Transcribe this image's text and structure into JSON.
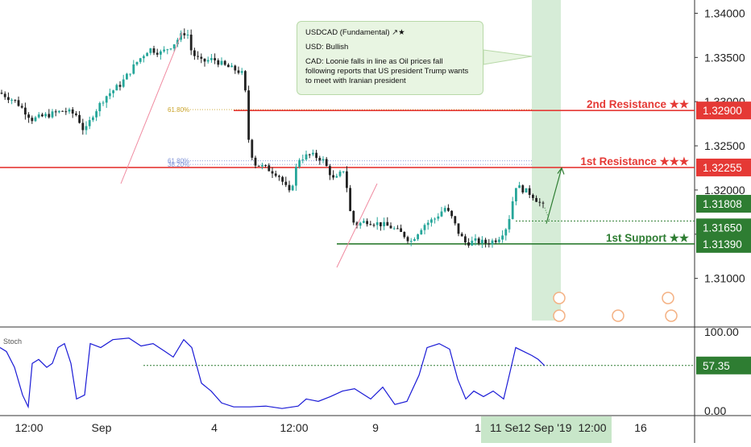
{
  "note": {
    "title": "USDCAD (Fundamental) ↗★",
    "usd": "USD: Bullish",
    "cad": "CAD: Loonie falls in line as Oil prices fall following reports that US president Trump wants to meet with Iranian president"
  },
  "colors": {
    "candle_up": "#26a69a",
    "candle_down": "#222222",
    "resistance": "#e53935",
    "support": "#2e7d32",
    "stoch": "#1a1ad6",
    "projection": "#c8e6c9",
    "fib": "#9e9e9e"
  },
  "chart_data": [
    {
      "type": "candlestick",
      "title": "",
      "y_axis": {
        "ticks": [
          "1.34000",
          "1.33500",
          "1.33000",
          "1.32500",
          "1.32000",
          "1.31500",
          "1.31000"
        ],
        "ylim": [
          1.3045,
          1.3415
        ]
      },
      "x_axis": {
        "ticks": [
          "12:00",
          "Sep",
          "4",
          "12:00",
          "9",
          "1",
          "12:00",
          "16"
        ],
        "highlight_labels": [
          "11 Se",
          "12 Sep '19"
        ]
      },
      "levels": [
        {
          "label": "2nd Resistance ★★",
          "value": "1.32900",
          "price": 1.329
        },
        {
          "label": "1st Resistance ★★★",
          "value": "1.32255",
          "price": 1.32255
        },
        {
          "label": "",
          "value": "1.31808",
          "price": 1.31808
        },
        {
          "label": "",
          "value": "1.31650",
          "price": 1.3165
        },
        {
          "label": "1st Support ★★",
          "value": "1.31390",
          "price": 1.3139
        }
      ],
      "fib_labels": [
        {
          "text": "61.80%",
          "price": 1.3291
        },
        {
          "text": "61.80%",
          "price": 1.3233
        },
        {
          "text": "38.20%",
          "price": 1.3229
        }
      ],
      "price_path": [
        [
          0,
          1.331
        ],
        [
          20,
          1.33
        ],
        [
          40,
          1.328
        ],
        [
          60,
          1.3285
        ],
        [
          80,
          1.329
        ],
        [
          95,
          1.3285
        ],
        [
          105,
          1.3265
        ],
        [
          115,
          1.3285
        ],
        [
          130,
          1.3305
        ],
        [
          150,
          1.332
        ],
        [
          170,
          1.3345
        ],
        [
          185,
          1.336
        ],
        [
          200,
          1.3355
        ],
        [
          215,
          1.3365
        ],
        [
          225,
          1.3375
        ],
        [
          232,
          1.338
        ],
        [
          238,
          1.3355
        ],
        [
          250,
          1.3345
        ],
        [
          265,
          1.3348
        ],
        [
          280,
          1.334
        ],
        [
          295,
          1.3335
        ],
        [
          303,
          1.333
        ],
        [
          308,
          1.326
        ],
        [
          315,
          1.323
        ],
        [
          330,
          1.3225
        ],
        [
          345,
          1.3218
        ],
        [
          360,
          1.3195
        ],
        [
          370,
          1.3235
        ],
        [
          385,
          1.324
        ],
        [
          400,
          1.3235
        ],
        [
          415,
          1.321
        ],
        [
          428,
          1.3225
        ],
        [
          433,
          1.318
        ],
        [
          440,
          1.316
        ],
        [
          455,
          1.3165
        ],
        [
          470,
          1.3162
        ],
        [
          485,
          1.3158
        ],
        [
          500,
          1.315
        ],
        [
          510,
          1.3142
        ],
        [
          525,
          1.316
        ],
        [
          540,
          1.3168
        ],
        [
          552,
          1.318
        ],
        [
          560,
          1.317
        ],
        [
          570,
          1.315
        ],
        [
          578,
          1.314
        ],
        [
          590,
          1.3142
        ],
        [
          605,
          1.314
        ],
        [
          618,
          1.3145
        ],
        [
          630,
          1.316
        ],
        [
          640,
          1.3205
        ],
        [
          650,
          1.32
        ],
        [
          660,
          1.3195
        ],
        [
          670,
          1.3185
        ],
        [
          676,
          1.318
        ]
      ],
      "projection_arrow": [
        [
          678,
          1.3162
        ],
        [
          697,
          1.3225
        ]
      ]
    },
    {
      "type": "line",
      "title": "Stoch",
      "y_axis": {
        "ticks": [
          "100.00",
          "0.00"
        ],
        "ylim": [
          -6,
          106
        ]
      },
      "current_value": "57.35",
      "series": [
        {
          "values": [
            [
              0,
              80
            ],
            [
              8,
              75
            ],
            [
              18,
              55
            ],
            [
              28,
              20
            ],
            [
              35,
              5
            ],
            [
              40,
              60
            ],
            [
              48,
              65
            ],
            [
              58,
              55
            ],
            [
              65,
              60
            ],
            [
              72,
              80
            ],
            [
              80,
              85
            ],
            [
              88,
              60
            ],
            [
              95,
              15
            ],
            [
              105,
              20
            ],
            [
              112,
              85
            ],
            [
              125,
              80
            ],
            [
              140,
              90
            ],
            [
              160,
              92
            ],
            [
              175,
              82
            ],
            [
              190,
              85
            ],
            [
              205,
              75
            ],
            [
              215,
              68
            ],
            [
              228,
              90
            ],
            [
              238,
              80
            ],
            [
              250,
              35
            ],
            [
              262,
              25
            ],
            [
              275,
              10
            ],
            [
              290,
              5
            ],
            [
              310,
              5
            ],
            [
              330,
              6
            ],
            [
              350,
              3
            ],
            [
              370,
              6
            ],
            [
              380,
              15
            ],
            [
              395,
              12
            ],
            [
              410,
              18
            ],
            [
              425,
              25
            ],
            [
              440,
              28
            ],
            [
              460,
              15
            ],
            [
              475,
              30
            ],
            [
              490,
              8
            ],
            [
              505,
              12
            ],
            [
              520,
              45
            ],
            [
              530,
              80
            ],
            [
              545,
              85
            ],
            [
              558,
              78
            ],
            [
              568,
              40
            ],
            [
              578,
              15
            ],
            [
              588,
              25
            ],
            [
              600,
              18
            ],
            [
              612,
              25
            ],
            [
              625,
              15
            ],
            [
              632,
              45
            ],
            [
              640,
              80
            ],
            [
              650,
              75
            ],
            [
              660,
              70
            ],
            [
              668,
              65
            ],
            [
              676,
              57
            ]
          ]
        }
      ],
      "signal_level": 57.35
    }
  ]
}
